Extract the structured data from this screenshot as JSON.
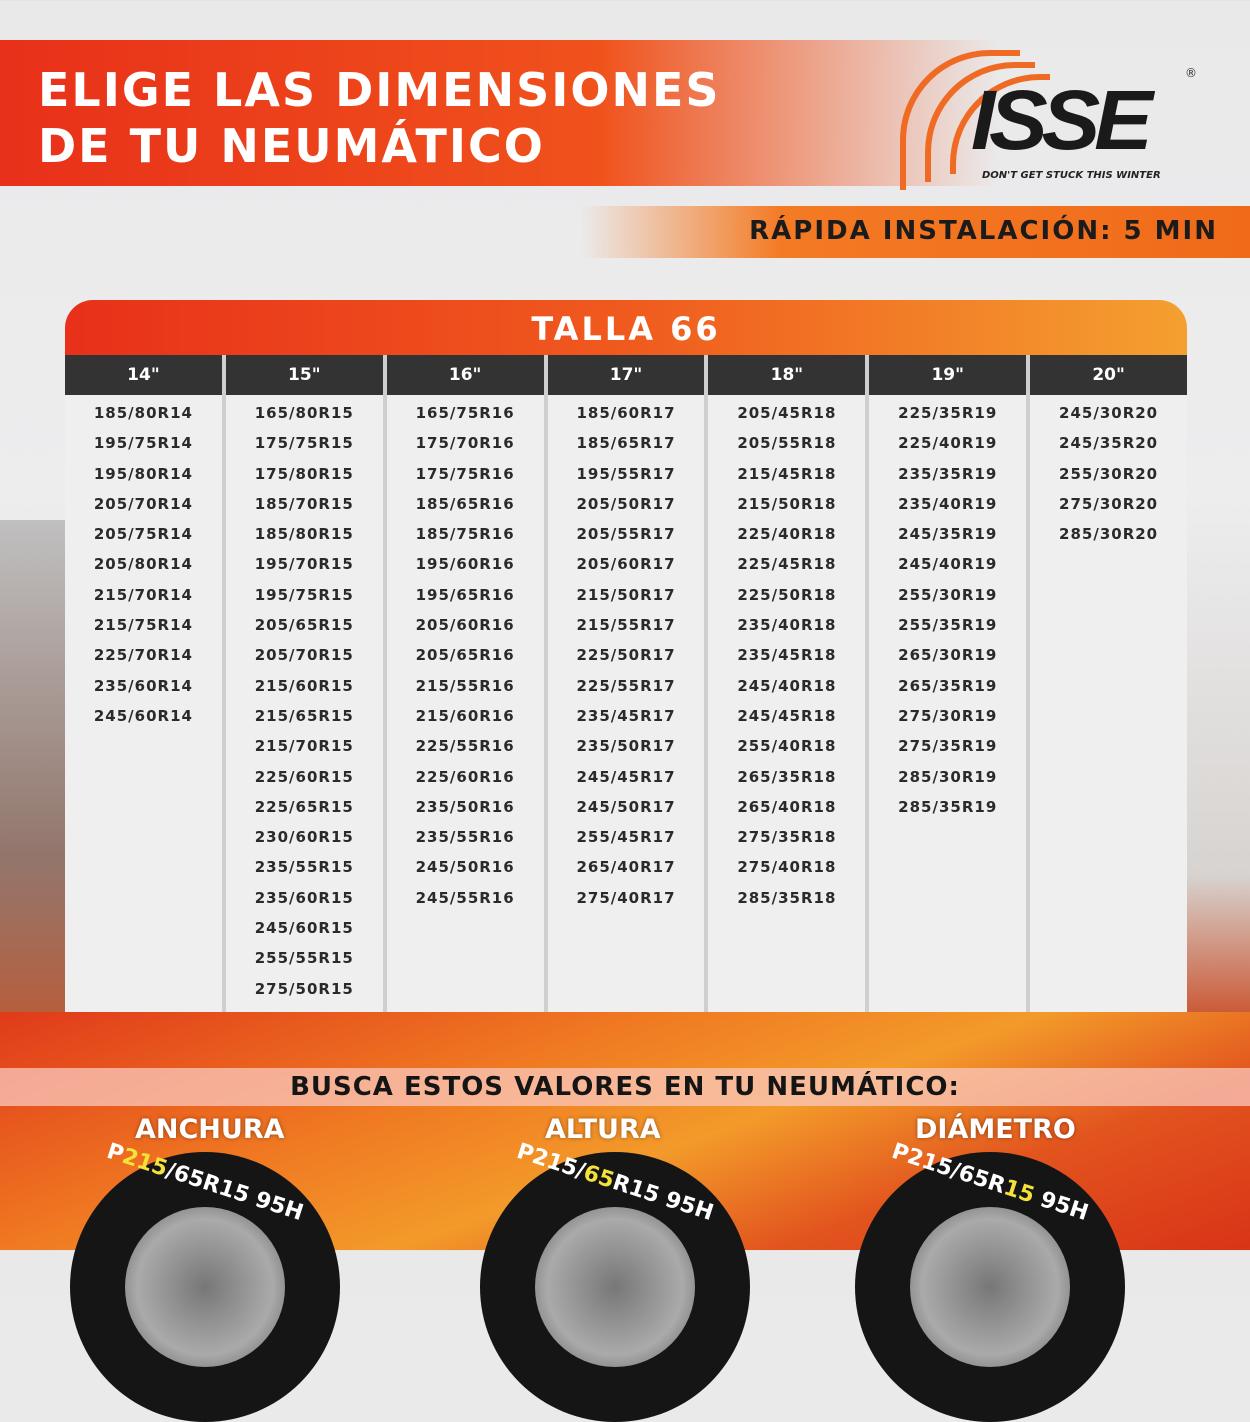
{
  "header": {
    "title_line1": "ELIGE LAS DIMENSIONES",
    "title_line2": "DE TU NEUMÁTICO",
    "logo": "ISSE",
    "tagline": "DON'T GET STUCK THIS WINTER",
    "registered": "®",
    "install": "RÁPIDA INSTALACIÓN: 5 MIN"
  },
  "table": {
    "title": "TALLA 66",
    "columns": [
      {
        "header": "14\"",
        "sizes": [
          "185/80R14",
          "195/75R14",
          "195/80R14",
          "205/70R14",
          "205/75R14",
          "205/80R14",
          "215/70R14",
          "215/75R14",
          "225/70R14",
          "235/60R14",
          "245/60R14"
        ]
      },
      {
        "header": "15\"",
        "sizes": [
          "165/80R15",
          "175/75R15",
          "175/80R15",
          "185/70R15",
          "185/80R15",
          "195/70R15",
          "195/75R15",
          "205/65R15",
          "205/70R15",
          "215/60R15",
          "215/65R15",
          "215/70R15",
          "225/60R15",
          "225/65R15",
          "230/60R15",
          "235/55R15",
          "235/60R15",
          "245/60R15",
          "255/55R15",
          "275/50R15"
        ]
      },
      {
        "header": "16\"",
        "sizes": [
          "165/75R16",
          "175/70R16",
          "175/75R16",
          "185/65R16",
          "185/75R16",
          "195/60R16",
          "195/65R16",
          "205/60R16",
          "205/65R16",
          "215/55R16",
          "215/60R16",
          "225/55R16",
          "225/60R16",
          "235/50R16",
          "235/55R16",
          "245/50R16",
          "245/55R16"
        ]
      },
      {
        "header": "17\"",
        "sizes": [
          "185/60R17",
          "185/65R17",
          "195/55R17",
          "205/50R17",
          "205/55R17",
          "205/60R17",
          "215/50R17",
          "215/55R17",
          "225/50R17",
          "225/55R17",
          "235/45R17",
          "235/50R17",
          "245/45R17",
          "245/50R17",
          "255/45R17",
          "265/40R17",
          "275/40R17"
        ]
      },
      {
        "header": "18\"",
        "sizes": [
          "205/45R18",
          "205/55R18",
          "215/45R18",
          "215/50R18",
          "225/40R18",
          "225/45R18",
          "225/50R18",
          "235/40R18",
          "235/45R18",
          "245/40R18",
          "245/45R18",
          "255/40R18",
          "265/35R18",
          "265/40R18",
          "275/35R18",
          "275/40R18",
          "285/35R18"
        ]
      },
      {
        "header": "19\"",
        "sizes": [
          "225/35R19",
          "225/40R19",
          "235/35R19",
          "235/40R19",
          "245/35R19",
          "245/40R19",
          "255/30R19",
          "255/35R19",
          "265/30R19",
          "265/35R19",
          "275/30R19",
          "275/35R19",
          "285/30R19",
          "285/35R19"
        ]
      },
      {
        "header": "20\"",
        "sizes": [
          "245/30R20",
          "245/35R20",
          "255/30R20",
          "275/30R20",
          "285/30R20"
        ]
      }
    ]
  },
  "footer": {
    "search": "BUSCA ESTOS VALORES EN TU NEUMÁTICO:",
    "items": [
      {
        "label": "ANCHURA",
        "pre": "P",
        "hl": "215",
        "post": "/65R15 95H"
      },
      {
        "label": "ALTURA",
        "pre": "P215/",
        "hl": "65",
        "post": "R15 95H"
      },
      {
        "label": "DIÁMETRO",
        "pre": "P215/65R",
        "hl": "15",
        "post": " 95H"
      }
    ]
  },
  "colors": {
    "red": "#e8301a",
    "orange": "#f47a24",
    "dark": "#333333",
    "highlight": "#f4e23a"
  }
}
